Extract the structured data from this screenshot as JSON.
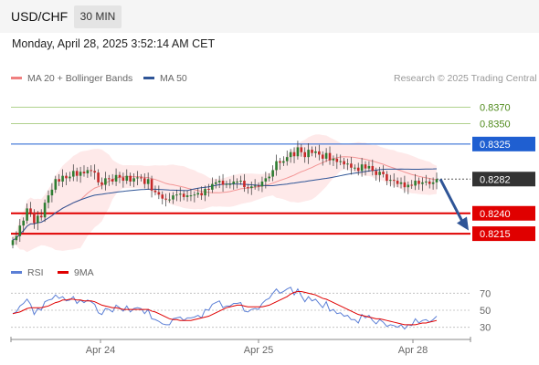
{
  "header": {
    "pair": "USD/CHF",
    "timeframe": "30 MIN"
  },
  "datetime": "Monday, April 28, 2025 3:52:14 AM CET",
  "legend": {
    "ma20_label": "MA 20 + Bollinger Bands",
    "ma50_label": "MA 50",
    "research": "Research © 2025 Trading Central",
    "colors": {
      "ma20": "#f08080",
      "ma50": "#2f5597",
      "band": "#fde2e2"
    }
  },
  "rsi_legend": {
    "rsi_label": "RSI",
    "ma_label": "9MA",
    "colors": {
      "rsi": "#5b7fd6",
      "ma": "#e00000"
    }
  },
  "chart_data": [
    {
      "type": "candlestick",
      "title": "",
      "x_ticks": [
        "Apr 24",
        "Apr 25",
        "Apr 28"
      ],
      "ylim": [
        0.8186,
        0.8392
      ],
      "levels": [
        {
          "value": 0.837,
          "label": "0.8370",
          "kind": "resistance",
          "color": "#7cb342"
        },
        {
          "value": 0.835,
          "label": "0.8350",
          "kind": "resistance",
          "color": "#7cb342"
        },
        {
          "value": 0.8325,
          "label": "0.8325",
          "kind": "pivot",
          "color": "#1f5fd1"
        },
        {
          "value": 0.8282,
          "label": "0.8282",
          "kind": "last-price",
          "color": "#333333"
        },
        {
          "value": 0.824,
          "label": "0.8240",
          "kind": "support",
          "color": "#e00000"
        },
        {
          "value": 0.8215,
          "label": "0.8215",
          "kind": "support",
          "color": "#e00000"
        }
      ],
      "forecast": {
        "from": 0.8282,
        "to": 0.8219,
        "direction": "down",
        "color": "#2f5597"
      },
      "closes": [
        0.8207,
        0.8212,
        0.8225,
        0.8231,
        0.8246,
        0.8241,
        0.8228,
        0.8237,
        0.8235,
        0.8253,
        0.8262,
        0.8269,
        0.8282,
        0.8279,
        0.8286,
        0.8283,
        0.8285,
        0.8292,
        0.8286,
        0.8291,
        0.8289,
        0.8293,
        0.8292,
        0.829,
        0.8278,
        0.8275,
        0.8283,
        0.8282,
        0.8279,
        0.8287,
        0.8284,
        0.828,
        0.8286,
        0.8279,
        0.8283,
        0.8284,
        0.8283,
        0.8276,
        0.8282,
        0.8268,
        0.8266,
        0.8263,
        0.8258,
        0.8257,
        0.8257,
        0.8262,
        0.8263,
        0.8264,
        0.826,
        0.8262,
        0.8262,
        0.8263,
        0.8265,
        0.8262,
        0.827,
        0.8269,
        0.8276,
        0.8278,
        0.828,
        0.8275,
        0.8276,
        0.8276,
        0.8279,
        0.8279,
        0.828,
        0.8272,
        0.8271,
        0.8273,
        0.8274,
        0.8273,
        0.8279,
        0.8283,
        0.8285,
        0.8293,
        0.8304,
        0.8302,
        0.8304,
        0.8309,
        0.8315,
        0.831,
        0.8321,
        0.8315,
        0.8309,
        0.8318,
        0.8314,
        0.8316,
        0.8312,
        0.8307,
        0.8314,
        0.8305,
        0.8307,
        0.8303,
        0.8304,
        0.83,
        0.8301,
        0.8296,
        0.8296,
        0.8292,
        0.83,
        0.8295,
        0.8298,
        0.8292,
        0.8287,
        0.8291,
        0.8288,
        0.828,
        0.8281,
        0.828,
        0.8276,
        0.8278,
        0.8272,
        0.8275,
        0.8274,
        0.828,
        0.8276,
        0.8278,
        0.8279,
        0.8276,
        0.8278,
        0.8282
      ]
    },
    {
      "type": "line",
      "title": "RSI",
      "ylim": [
        20,
        80
      ],
      "y_ticks": [
        70,
        50,
        30
      ],
      "series": [
        {
          "name": "RSI",
          "values": [
            46,
            48,
            55,
            58,
            63,
            57,
            45,
            52,
            50,
            60,
            62,
            63,
            68,
            64,
            66,
            61,
            62,
            66,
            58,
            62,
            59,
            62,
            60,
            57,
            47,
            45,
            52,
            51,
            48,
            56,
            53,
            49,
            55,
            48,
            52,
            53,
            52,
            46,
            51,
            40,
            39,
            37,
            34,
            33,
            33,
            40,
            41,
            42,
            38,
            41,
            41,
            42,
            44,
            41,
            51,
            50,
            57,
            59,
            61,
            53,
            55,
            55,
            58,
            58,
            59,
            49,
            48,
            51,
            52,
            51,
            58,
            62,
            64,
            70,
            75,
            70,
            72,
            75,
            77,
            68,
            75,
            67,
            60,
            66,
            61,
            63,
            58,
            53,
            60,
            49,
            51,
            46,
            47,
            43,
            44,
            39,
            39,
            35,
            45,
            41,
            44,
            38,
            34,
            39,
            36,
            31,
            33,
            32,
            30,
            33,
            28,
            33,
            32,
            40,
            35,
            38,
            39,
            36,
            39,
            43
          ]
        },
        {
          "name": "9MA",
          "values": [
            46,
            47,
            48,
            50,
            52,
            53,
            53,
            53,
            53,
            54,
            55,
            57,
            59,
            60,
            62,
            62,
            63,
            63,
            62,
            62,
            61,
            61,
            61,
            60,
            58,
            56,
            55,
            54,
            53,
            53,
            52,
            51,
            51,
            51,
            51,
            51,
            51,
            51,
            51,
            49,
            48,
            46,
            44,
            42,
            40,
            39,
            39,
            38,
            38,
            38,
            38,
            39,
            40,
            41,
            42,
            43,
            45,
            47,
            49,
            51,
            53,
            54,
            55,
            56,
            56,
            55,
            54,
            54,
            54,
            54,
            54,
            55,
            56,
            58,
            60,
            62,
            64,
            66,
            69,
            71,
            72,
            72,
            71,
            70,
            69,
            68,
            66,
            64,
            63,
            61,
            59,
            57,
            55,
            53,
            51,
            49,
            47,
            45,
            44,
            43,
            42,
            41,
            40,
            40,
            39,
            38,
            37,
            36,
            35,
            34,
            33,
            33,
            33,
            33,
            34,
            35,
            35,
            36,
            37,
            38
          ]
        }
      ]
    }
  ]
}
